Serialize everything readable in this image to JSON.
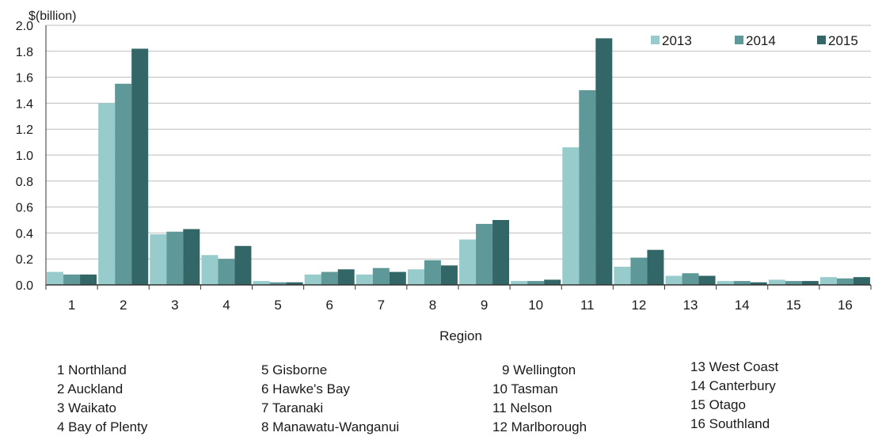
{
  "chart_data": {
    "type": "bar",
    "title": "",
    "ylabel": "$(billion)",
    "xlabel": "Region",
    "categories": [
      "1",
      "2",
      "3",
      "4",
      "5",
      "6",
      "7",
      "8",
      "9",
      "10",
      "11",
      "12",
      "13",
      "14",
      "15",
      "16"
    ],
    "ylim": [
      0,
      2.0
    ],
    "yticks": [
      "0.0",
      "0.2",
      "0.4",
      "0.6",
      "0.8",
      "1.0",
      "1.2",
      "1.4",
      "1.6",
      "1.8",
      "2.0"
    ],
    "grid": true,
    "legend_position": "top-right",
    "series": [
      {
        "name": "2013",
        "color": "#98cccc",
        "values": [
          0.1,
          1.4,
          0.39,
          0.23,
          0.03,
          0.08,
          0.08,
          0.12,
          0.35,
          0.03,
          1.06,
          0.14,
          0.07,
          0.03,
          0.04,
          0.06
        ]
      },
      {
        "name": "2014",
        "color": "#5f9898",
        "values": [
          0.08,
          1.55,
          0.41,
          0.2,
          0.02,
          0.1,
          0.13,
          0.19,
          0.47,
          0.03,
          1.5,
          0.21,
          0.09,
          0.03,
          0.03,
          0.05
        ]
      },
      {
        "name": "2015",
        "color": "#336666",
        "values": [
          0.08,
          1.82,
          0.43,
          0.3,
          0.02,
          0.12,
          0.1,
          0.15,
          0.5,
          0.04,
          1.9,
          0.27,
          0.07,
          0.02,
          0.03,
          0.06
        ]
      }
    ]
  },
  "region_key": [
    [
      "1 Northland",
      "2 Auckland",
      "3 Waikato",
      "4 Bay of Plenty"
    ],
    [
      "5 Gisborne",
      "6 Hawke's Bay",
      "7 Taranaki",
      "8 Manawatu-Wanganui"
    ],
    [
      "9 Wellington",
      "10 Tasman",
      "11 Nelson",
      "12 Marlborough"
    ],
    [
      "13 West Coast",
      "14 Canterbury",
      "15 Otago",
      "16 Southland"
    ]
  ]
}
